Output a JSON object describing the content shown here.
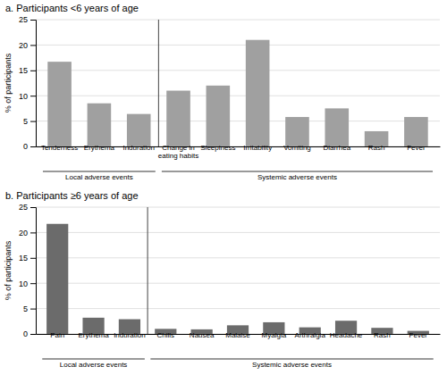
{
  "chart_data": [
    {
      "type": "bar",
      "title": "a. Participants <6 years of age",
      "categories": [
        "Tenderness",
        "Erythema",
        "Induration",
        "Change in\neating habits",
        "Sleepiness",
        "Irritability",
        "Vomiting",
        "Diarrhea",
        "Rash",
        "Fever"
      ],
      "values": [
        16.7,
        8.5,
        6.4,
        11.0,
        12.0,
        21.0,
        5.8,
        7.5,
        3.0,
        5.8
      ],
      "color": "#a0a0a0",
      "ylabel": "% of participants",
      "ylim": [
        0,
        25
      ],
      "yticks": [
        0,
        5,
        10,
        15,
        20,
        25
      ],
      "grid": true,
      "annotations": [
        {
          "text": "Local adverse events",
          "from": "Tenderness",
          "to": "Induration"
        },
        {
          "text": "Systemic adverse events",
          "from": "Change in\neating habits",
          "to": "Fever"
        }
      ]
    },
    {
      "type": "bar",
      "title": "b. Participants ≥6 years of age",
      "categories": [
        "Pain",
        "Erythema",
        "Induration",
        "Chills",
        "Nausea",
        "Malaise",
        "Myalgia",
        "Arthralgia",
        "Headache",
        "Rash",
        "Fever"
      ],
      "values": [
        21.7,
        3.2,
        2.9,
        1.0,
        0.9,
        1.7,
        2.3,
        1.3,
        2.6,
        1.2,
        0.6
      ],
      "color": "#6b6b6b",
      "ylabel": "% of participants",
      "ylim": [
        0,
        25
      ],
      "yticks": [
        0,
        5,
        10,
        15,
        20,
        25
      ],
      "grid": true,
      "annotations": [
        {
          "text": "Local adverse events",
          "from": "Pain",
          "to": "Induration"
        },
        {
          "text": "Systemic adverse events",
          "from": "Chills",
          "to": "Fever"
        }
      ]
    }
  ]
}
